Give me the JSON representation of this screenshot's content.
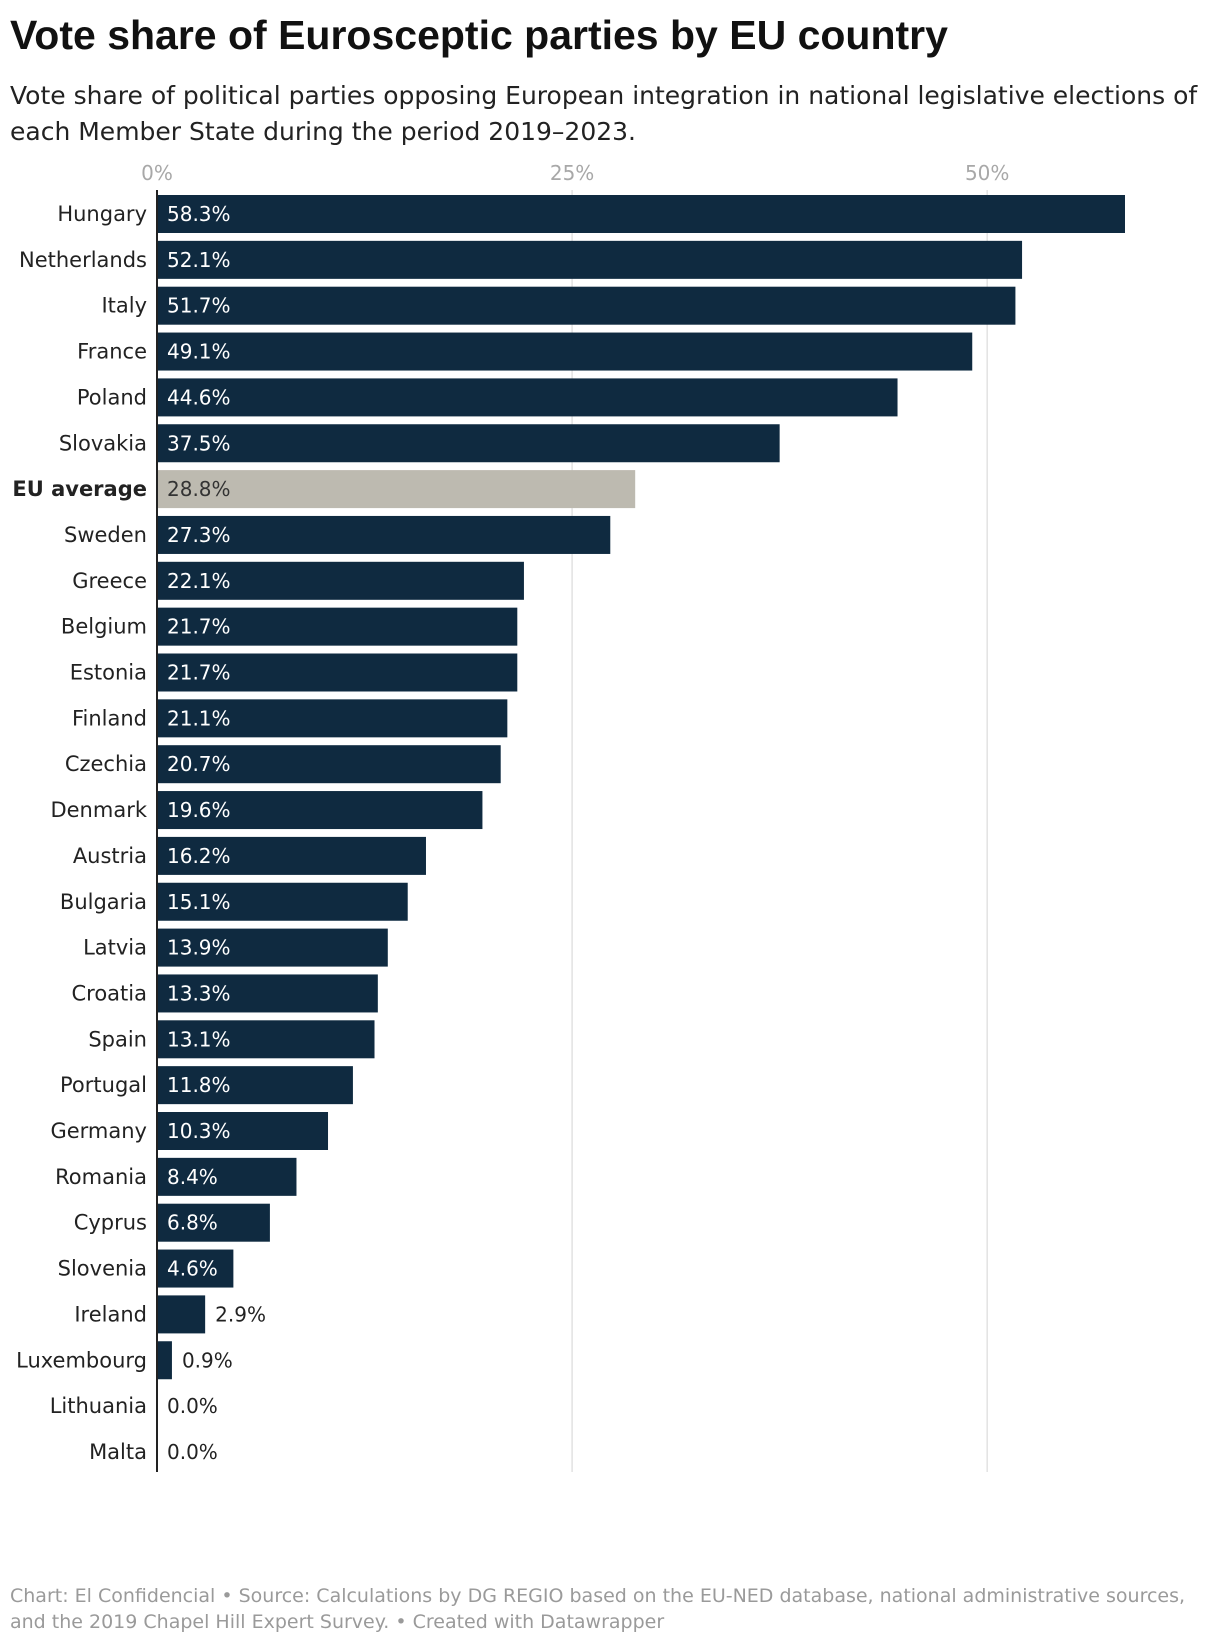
{
  "header": {
    "title": "Vote share of Eurosceptic parties by EU country",
    "subtitle": "Vote share of political parties opposing European integration in national legislative elections of each Member State during the period 2019–2023."
  },
  "footer": {
    "text": "Chart: El Confidencial • Source: Calculations by DG REGIO based on the EU-NED database, national administrative sources, and the 2019 Chapel Hill Expert Survey. • Created with Datawrapper"
  },
  "colors": {
    "bar": "#0f2a40",
    "highlight_bar": "#bdbab0",
    "gridline": "#e2e2e2",
    "axis_tick": "#a8a8a8",
    "label_inside": "#ffffff",
    "label_outside": "#222222",
    "category_label": "#222222"
  },
  "chart_data": {
    "type": "bar",
    "orientation": "horizontal",
    "title": "Vote share of Eurosceptic parties by EU country",
    "xlabel": "",
    "ylabel": "",
    "xlim": [
      0,
      58.3
    ],
    "ticks": [
      {
        "value": 0,
        "label": "0%"
      },
      {
        "value": 25,
        "label": "25%"
      },
      {
        "value": 50,
        "label": "50%"
      }
    ],
    "grid": true,
    "highlight": "EU average",
    "categories": [
      "Hungary",
      "Netherlands",
      "Italy",
      "France",
      "Poland",
      "Slovakia",
      "EU average",
      "Sweden",
      "Greece",
      "Belgium",
      "Estonia",
      "Finland",
      "Czechia",
      "Denmark",
      "Austria",
      "Bulgaria",
      "Latvia",
      "Croatia",
      "Spain",
      "Portugal",
      "Germany",
      "Romania",
      "Cyprus",
      "Slovenia",
      "Ireland",
      "Luxembourg",
      "Lithuania",
      "Malta"
    ],
    "values": [
      58.3,
      52.1,
      51.7,
      49.1,
      44.6,
      37.5,
      28.8,
      27.3,
      22.1,
      21.7,
      21.7,
      21.1,
      20.7,
      19.6,
      16.2,
      15.1,
      13.9,
      13.3,
      13.1,
      11.8,
      10.3,
      8.4,
      6.8,
      4.6,
      2.9,
      0.9,
      0.0,
      0.0
    ],
    "value_labels": [
      "58.3%",
      "52.1%",
      "51.7%",
      "49.1%",
      "44.6%",
      "37.5%",
      "28.8%",
      "27.3%",
      "22.1%",
      "21.7%",
      "21.7%",
      "21.1%",
      "20.7%",
      "19.6%",
      "16.2%",
      "15.1%",
      "13.9%",
      "13.3%",
      "13.1%",
      "11.8%",
      "10.3%",
      "8.4%",
      "6.8%",
      "4.6%",
      "2.9%",
      "0.9%",
      "0.0%",
      "0.0%"
    ]
  }
}
